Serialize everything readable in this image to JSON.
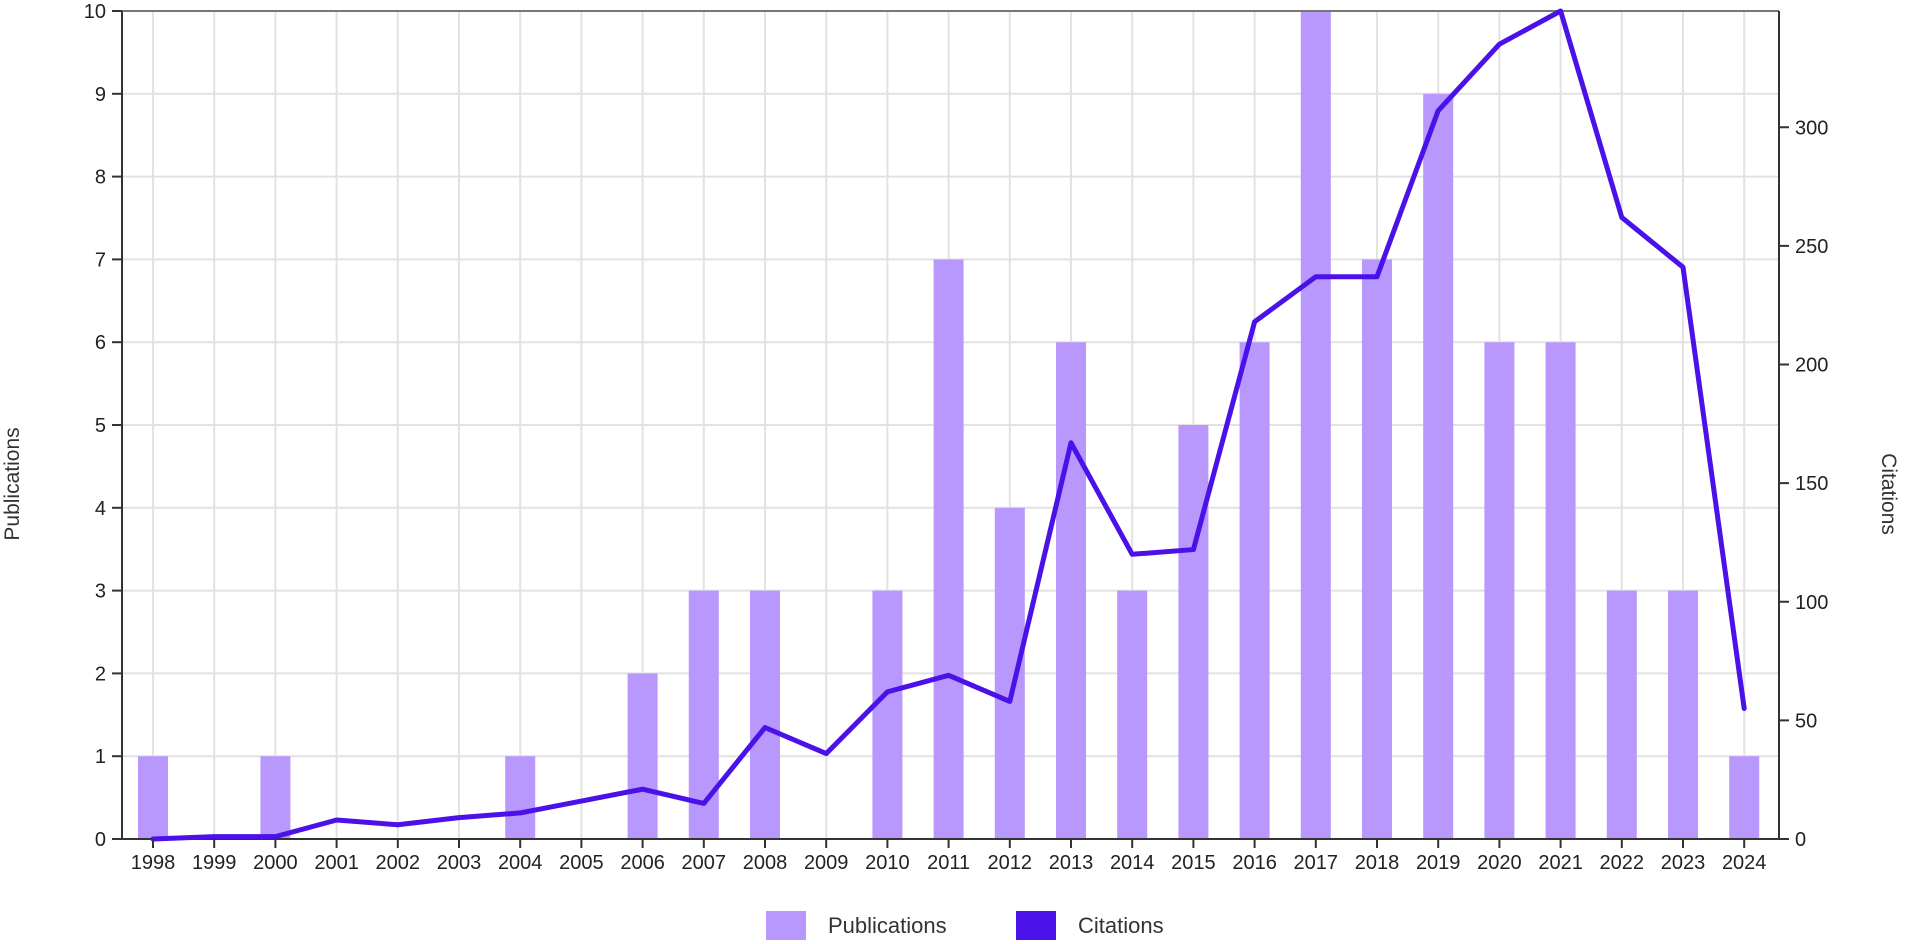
{
  "chart_data": {
    "type": "bar",
    "categories": [
      "1998",
      "1999",
      "2000",
      "2001",
      "2002",
      "2003",
      "2004",
      "2005",
      "2006",
      "2007",
      "2008",
      "2009",
      "2010",
      "2011",
      "2012",
      "2013",
      "2014",
      "2015",
      "2016",
      "2017",
      "2018",
      "2019",
      "2020",
      "2021",
      "2022",
      "2023",
      "2024"
    ],
    "series": [
      {
        "name": "Publications",
        "type": "bar",
        "axis": "left",
        "color": "#b898fc",
        "values": [
          1,
          0,
          1,
          0,
          0,
          0,
          1,
          0,
          2,
          3,
          3,
          0,
          3,
          7,
          4,
          6,
          3,
          5,
          6,
          10,
          7,
          9,
          6,
          6,
          3,
          3,
          1
        ]
      },
      {
        "name": "Citations",
        "type": "line",
        "axis": "right",
        "color": "#4a12e8",
        "values": [
          0,
          1,
          1,
          8,
          6,
          9,
          11,
          16,
          21,
          15,
          47,
          36,
          62,
          69,
          58,
          167,
          120,
          122,
          218,
          237,
          237,
          307,
          335,
          349,
          262,
          241,
          55
        ]
      }
    ],
    "ylabel": "Publications",
    "y2label": "Citations",
    "ylim": [
      0,
      10
    ],
    "y2lim": [
      0,
      349
    ],
    "yticks": [
      0,
      1,
      2,
      3,
      4,
      5,
      6,
      7,
      8,
      9,
      10
    ],
    "y2ticks": [
      0,
      50,
      100,
      150,
      200,
      250,
      300
    ],
    "grid": true,
    "legend_position": "bottom-center"
  }
}
